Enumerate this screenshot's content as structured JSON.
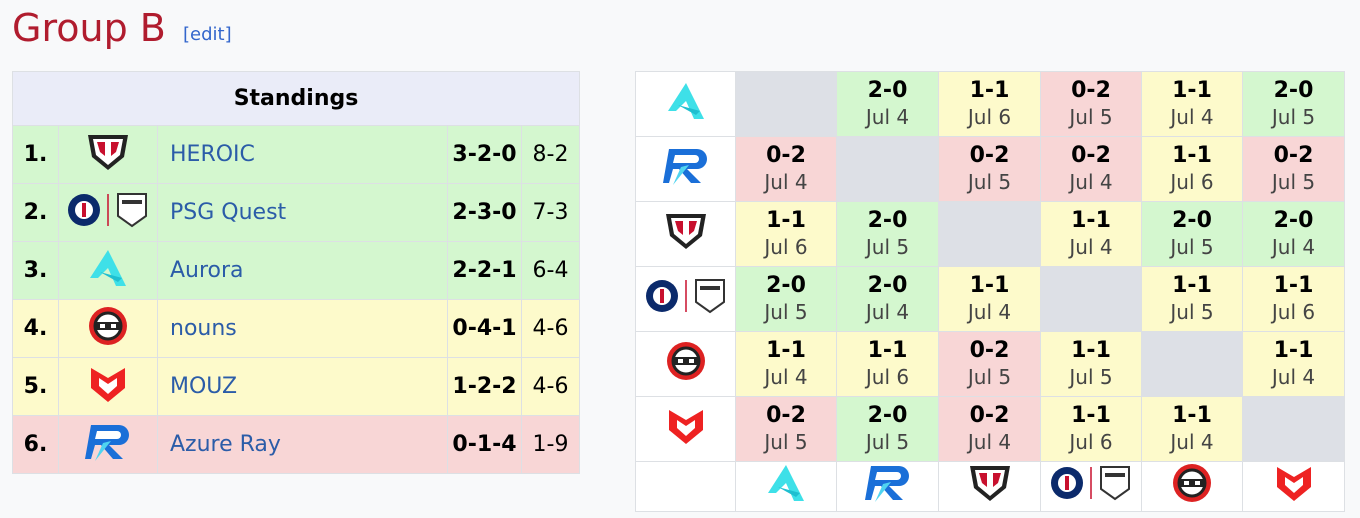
{
  "header": {
    "title": "Group B",
    "edit": "[edit]"
  },
  "standings": {
    "title": "Standings",
    "rows": [
      {
        "rank": "1.",
        "team": "HEROIC",
        "record": "3-2-0",
        "score": "8-2"
      },
      {
        "rank": "2.",
        "team": "PSG Quest",
        "record": "2-3-0",
        "score": "7-3"
      },
      {
        "rank": "3.",
        "team": "Aurora",
        "record": "2-2-1",
        "score": "6-4"
      },
      {
        "rank": "4.",
        "team": "nouns",
        "record": "0-4-1",
        "score": "4-6"
      },
      {
        "rank": "5.",
        "team": "MOUZ",
        "record": "1-2-2",
        "score": "4-6"
      },
      {
        "rank": "6.",
        "team": "Azure Ray",
        "record": "0-1-4",
        "score": "1-9"
      }
    ]
  },
  "crosstable": {
    "rows": [
      [
        null,
        {
          "score": "2-0",
          "date": "Jul 4"
        },
        {
          "score": "1-1",
          "date": "Jul 6"
        },
        {
          "score": "0-2",
          "date": "Jul 5"
        },
        {
          "score": "1-1",
          "date": "Jul 4"
        },
        {
          "score": "2-0",
          "date": "Jul 5"
        }
      ],
      [
        {
          "score": "0-2",
          "date": "Jul 4"
        },
        null,
        {
          "score": "0-2",
          "date": "Jul 5"
        },
        {
          "score": "0-2",
          "date": "Jul 4"
        },
        {
          "score": "1-1",
          "date": "Jul 6"
        },
        {
          "score": "0-2",
          "date": "Jul 5"
        }
      ],
      [
        {
          "score": "1-1",
          "date": "Jul 6"
        },
        {
          "score": "2-0",
          "date": "Jul 5"
        },
        null,
        {
          "score": "1-1",
          "date": "Jul 4"
        },
        {
          "score": "2-0",
          "date": "Jul 5"
        },
        {
          "score": "2-0",
          "date": "Jul 4"
        }
      ],
      [
        {
          "score": "2-0",
          "date": "Jul 5"
        },
        {
          "score": "2-0",
          "date": "Jul 4"
        },
        {
          "score": "1-1",
          "date": "Jul 4"
        },
        null,
        {
          "score": "1-1",
          "date": "Jul 5"
        },
        {
          "score": "1-1",
          "date": "Jul 6"
        }
      ],
      [
        {
          "score": "1-1",
          "date": "Jul 4"
        },
        {
          "score": "1-1",
          "date": "Jul 6"
        },
        {
          "score": "0-2",
          "date": "Jul 5"
        },
        {
          "score": "1-1",
          "date": "Jul 5"
        },
        null,
        {
          "score": "1-1",
          "date": "Jul 4"
        }
      ],
      [
        {
          "score": "0-2",
          "date": "Jul 5"
        },
        {
          "score": "2-0",
          "date": "Jul 5"
        },
        {
          "score": "0-2",
          "date": "Jul 4"
        },
        {
          "score": "1-1",
          "date": "Jul 6"
        },
        {
          "score": "1-1",
          "date": "Jul 4"
        },
        null
      ]
    ]
  }
}
